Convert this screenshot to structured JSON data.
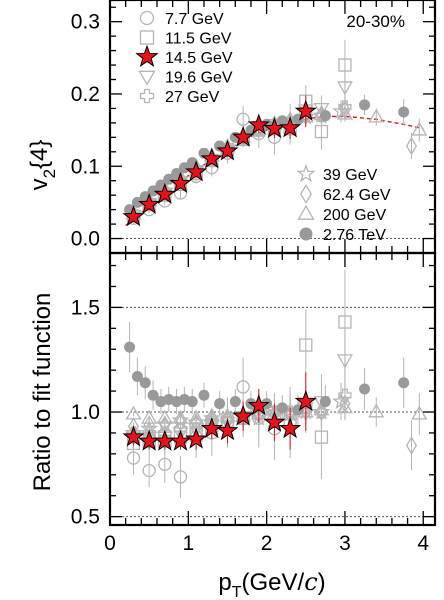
{
  "chart_data": [
    {
      "type": "scatter",
      "panel": "top",
      "ylabel_main": "v",
      "ylabel_sub": "2",
      "ylabel_rest": "{4}",
      "centrality": "20-30%",
      "xlim": [
        0,
        4.15
      ],
      "ylim": [
        -0.02,
        0.33
      ],
      "x_ticks": [
        "0",
        "1",
        "2",
        "3",
        "4"
      ],
      "y_ticks": [
        {
          "value": 0.0,
          "label": "0.0"
        },
        {
          "value": 0.1,
          "label": "0.1"
        },
        {
          "value": 0.2,
          "label": "0.2"
        },
        {
          "value": 0.3,
          "label": "0.3"
        }
      ],
      "reference_line": 0.0,
      "fit_function": {
        "x": [
          0.2,
          0.4,
          0.6,
          0.8,
          1.0,
          1.2,
          1.4,
          1.6,
          1.8,
          2.0,
          2.2,
          2.4,
          2.6,
          2.8,
          3.0,
          3.2,
          3.4,
          3.6,
          3.8,
          4.0
        ],
        "y": [
          0.018,
          0.036,
          0.054,
          0.07,
          0.087,
          0.102,
          0.116,
          0.129,
          0.141,
          0.15,
          0.158,
          0.163,
          0.167,
          0.169,
          0.169,
          0.167,
          0.165,
          0.161,
          0.157,
          0.152
        ]
      },
      "legend_left": [
        "7.7 GeV",
        "11.5 GeV",
        "14.5 GeV",
        "19.6 GeV",
        "27 GeV"
      ],
      "legend_right": [
        "39 GeV",
        "62.4 GeV",
        "200 GeV",
        "2.76 TeV"
      ],
      "series": [
        {
          "name": "7.7 GeV",
          "marker": "circle-open",
          "x": [
            0.3,
            0.5,
            0.7,
            0.9,
            1.1,
            1.3,
            1.5,
            1.7,
            1.9,
            2.1,
            2.3
          ],
          "y": [
            0.028,
            0.04,
            0.052,
            0.063,
            0.086,
            0.098,
            0.118,
            0.165,
            0.145,
            0.14,
            0.158
          ],
          "err": [
            0.004,
            0.005,
            0.006,
            0.008,
            0.01,
            0.012,
            0.014,
            0.018,
            0.02,
            0.024,
            0.028
          ]
        },
        {
          "name": "11.5 GeV",
          "marker": "square-open",
          "x": [
            0.3,
            0.5,
            0.7,
            0.9,
            1.1,
            1.3,
            1.5,
            1.7,
            1.9,
            2.1,
            2.3,
            2.5,
            2.7,
            3.0
          ],
          "y": [
            0.031,
            0.047,
            0.06,
            0.075,
            0.09,
            0.108,
            0.123,
            0.137,
            0.15,
            0.152,
            0.152,
            0.19,
            0.148,
            0.24
          ],
          "err": [
            0.003,
            0.003,
            0.004,
            0.005,
            0.006,
            0.007,
            0.008,
            0.01,
            0.012,
            0.014,
            0.016,
            0.022,
            0.025,
            0.035
          ]
        },
        {
          "name": "14.5 GeV",
          "marker": "star-filled",
          "x": [
            0.3,
            0.5,
            0.7,
            0.9,
            1.1,
            1.3,
            1.5,
            1.7,
            1.9,
            2.1,
            2.3,
            2.5
          ],
          "y": [
            0.03,
            0.047,
            0.061,
            0.076,
            0.092,
            0.11,
            0.121,
            0.14,
            0.157,
            0.152,
            0.153,
            0.176
          ],
          "err": [
            0.003,
            0.003,
            0.004,
            0.005,
            0.006,
            0.007,
            0.008,
            0.009,
            0.011,
            0.013,
            0.015,
            0.022
          ]
        },
        {
          "name": "19.6 GeV",
          "marker": "triangle-down-open",
          "x": [
            0.3,
            0.5,
            0.7,
            0.9,
            1.1,
            1.3,
            1.5,
            1.7,
            1.9,
            2.1,
            2.3,
            2.5,
            2.7,
            3.0
          ],
          "y": [
            0.032,
            0.048,
            0.062,
            0.078,
            0.094,
            0.108,
            0.122,
            0.138,
            0.15,
            0.158,
            0.155,
            0.178,
            0.18,
            0.21
          ],
          "err": [
            0.002,
            0.002,
            0.003,
            0.004,
            0.004,
            0.005,
            0.006,
            0.007,
            0.009,
            0.01,
            0.012,
            0.016,
            0.018,
            0.025
          ]
        },
        {
          "name": "27 GeV",
          "marker": "cross-open",
          "x": [
            0.3,
            0.5,
            0.7,
            0.9,
            1.1,
            1.3,
            1.5,
            1.7,
            1.9,
            2.1,
            2.3,
            2.5,
            2.7,
            3.0
          ],
          "y": [
            0.033,
            0.049,
            0.064,
            0.08,
            0.095,
            0.11,
            0.123,
            0.139,
            0.151,
            0.156,
            0.16,
            0.172,
            0.17,
            0.182
          ],
          "err": [
            0.002,
            0.002,
            0.003,
            0.003,
            0.004,
            0.004,
            0.005,
            0.006,
            0.007,
            0.008,
            0.01,
            0.012,
            0.014,
            0.018
          ]
        },
        {
          "name": "39 GeV",
          "marker": "star-open",
          "x": [
            0.3,
            0.5,
            0.7,
            0.9,
            1.1,
            1.3,
            1.5,
            1.7,
            1.9,
            2.1,
            2.3,
            2.5,
            2.7,
            2.95
          ],
          "y": [
            0.032,
            0.05,
            0.066,
            0.082,
            0.096,
            0.112,
            0.126,
            0.141,
            0.15,
            0.158,
            0.162,
            0.168,
            0.17,
            0.176
          ],
          "err": [
            0.002,
            0.002,
            0.002,
            0.003,
            0.003,
            0.004,
            0.004,
            0.005,
            0.006,
            0.007,
            0.008,
            0.01,
            0.012,
            0.015
          ]
        },
        {
          "name": "62.4 GeV",
          "marker": "diamond-open",
          "x": [
            0.3,
            0.5,
            0.7,
            0.9,
            1.1,
            1.3,
            1.5,
            1.7,
            1.9,
            2.1,
            2.3,
            2.5,
            2.7,
            3.0,
            3.85
          ],
          "y": [
            0.033,
            0.052,
            0.068,
            0.084,
            0.098,
            0.112,
            0.125,
            0.139,
            0.152,
            0.158,
            0.163,
            0.17,
            0.172,
            0.178,
            0.128
          ],
          "err": [
            0.002,
            0.002,
            0.002,
            0.003,
            0.003,
            0.003,
            0.004,
            0.004,
            0.005,
            0.006,
            0.007,
            0.008,
            0.01,
            0.012,
            0.018
          ]
        },
        {
          "name": "200 GeV",
          "marker": "triangle-up-open",
          "x": [
            0.3,
            0.5,
            0.7,
            0.9,
            1.1,
            1.3,
            1.5,
            1.7,
            1.9,
            2.1,
            2.3,
            2.5,
            2.7,
            3.0,
            3.4,
            3.95
          ],
          "y": [
            0.034,
            0.052,
            0.068,
            0.084,
            0.099,
            0.114,
            0.127,
            0.14,
            0.151,
            0.158,
            0.163,
            0.168,
            0.171,
            0.172,
            0.168,
            0.15
          ],
          "err": [
            0.001,
            0.001,
            0.002,
            0.002,
            0.002,
            0.003,
            0.003,
            0.004,
            0.004,
            0.005,
            0.006,
            0.007,
            0.008,
            0.01,
            0.012,
            0.016
          ]
        },
        {
          "name": "2.76 TeV",
          "marker": "circle-filled",
          "x": [
            0.25,
            0.35,
            0.45,
            0.55,
            0.65,
            0.75,
            0.85,
            0.95,
            1.05,
            1.2,
            1.4,
            1.6,
            1.8,
            2.0,
            2.2,
            2.4,
            2.75,
            3.25,
            3.75
          ],
          "y": [
            0.04,
            0.05,
            0.058,
            0.066,
            0.074,
            0.082,
            0.09,
            0.098,
            0.105,
            0.118,
            0.128,
            0.14,
            0.15,
            0.158,
            0.163,
            0.165,
            0.17,
            0.185,
            0.175
          ],
          "err": [
            0.003,
            0.003,
            0.003,
            0.003,
            0.003,
            0.003,
            0.003,
            0.003,
            0.004,
            0.004,
            0.004,
            0.005,
            0.005,
            0.006,
            0.007,
            0.008,
            0.01,
            0.014,
            0.018
          ]
        }
      ]
    },
    {
      "type": "scatter",
      "panel": "bottom",
      "ylabel": "Ratio to fit function",
      "xlabel_main": "p",
      "xlabel_sub": "T",
      "xlabel_rest": "(GeV/",
      "xlabel_italic": "c",
      "xlabel_close": ")",
      "xlim": [
        0,
        4.15
      ],
      "ylim": [
        0.46,
        1.76
      ],
      "x_ticks": [
        "0",
        "1",
        "2",
        "3",
        "4"
      ],
      "y_ticks": [
        {
          "value": 0.5,
          "label": "0.5"
        },
        {
          "value": 1.0,
          "label": "1.0"
        },
        {
          "value": 1.5,
          "label": "1.5"
        }
      ],
      "reference_lines": [
        0.5,
        1.0,
        1.5
      ],
      "series": [
        {
          "name": "7.7 GeV",
          "marker": "circle-open",
          "x": [
            0.3,
            0.5,
            0.7,
            0.9,
            1.1,
            1.3,
            1.5,
            1.7,
            1.9,
            2.1,
            2.3
          ],
          "y": [
            0.78,
            0.72,
            0.75,
            0.69,
            0.88,
            0.9,
            0.95,
            1.12,
            0.97,
            0.92,
            0.95
          ],
          "err": [
            0.08,
            0.08,
            0.09,
            0.1,
            0.1,
            0.11,
            0.12,
            0.14,
            0.14,
            0.15,
            0.17
          ]
        },
        {
          "name": "11.5 GeV",
          "marker": "square-open",
          "x": [
            0.3,
            0.5,
            0.7,
            0.9,
            1.1,
            1.3,
            1.5,
            1.7,
            1.9,
            2.1,
            2.3,
            2.5,
            2.7,
            3.0
          ],
          "y": [
            0.85,
            0.86,
            0.86,
            0.88,
            0.89,
            0.94,
            0.95,
            0.97,
            1.0,
            0.98,
            0.96,
            1.32,
            0.88,
            1.43
          ],
          "err": [
            0.07,
            0.06,
            0.06,
            0.06,
            0.07,
            0.07,
            0.08,
            0.09,
            0.1,
            0.11,
            0.12,
            0.17,
            0.2,
            0.25
          ]
        },
        {
          "name": "14.5 GeV",
          "marker": "star-filled",
          "x": [
            0.3,
            0.5,
            0.7,
            0.9,
            1.1,
            1.3,
            1.5,
            1.7,
            1.9,
            2.1,
            2.3,
            2.5
          ],
          "y": [
            0.88,
            0.86,
            0.86,
            0.86,
            0.87,
            0.92,
            0.91,
            0.98,
            1.03,
            0.95,
            0.92,
            1.05
          ],
          "err": [
            0.04,
            0.04,
            0.04,
            0.04,
            0.05,
            0.05,
            0.06,
            0.07,
            0.08,
            0.09,
            0.1,
            0.14
          ]
        },
        {
          "name": "19.6 GeV",
          "marker": "triangle-down-open",
          "x": [
            0.3,
            0.5,
            0.7,
            0.9,
            1.1,
            1.3,
            1.5,
            1.7,
            1.9,
            2.1,
            2.3,
            2.5,
            2.7,
            3.0
          ],
          "y": [
            0.88,
            0.88,
            0.88,
            0.9,
            0.92,
            0.94,
            0.95,
            0.97,
            0.99,
            1.0,
            0.98,
            1.02,
            1.05,
            1.25
          ],
          "err": [
            0.04,
            0.04,
            0.04,
            0.04,
            0.05,
            0.05,
            0.06,
            0.07,
            0.08,
            0.08,
            0.1,
            0.12,
            0.13,
            0.16
          ]
        },
        {
          "name": "27 GeV",
          "marker": "cross-open",
          "x": [
            0.3,
            0.5,
            0.7,
            0.9,
            1.1,
            1.3,
            1.5,
            1.7,
            1.9,
            2.1,
            2.3,
            2.5,
            2.7,
            3.0
          ],
          "y": [
            0.9,
            0.9,
            0.9,
            0.92,
            0.92,
            0.95,
            0.96,
            0.97,
            0.99,
            1.0,
            1.0,
            1.02,
            1.0,
            1.08
          ],
          "err": [
            0.03,
            0.03,
            0.03,
            0.03,
            0.04,
            0.04,
            0.04,
            0.05,
            0.05,
            0.06,
            0.07,
            0.08,
            0.09,
            0.12
          ]
        },
        {
          "name": "39 GeV",
          "marker": "star-open",
          "x": [
            0.3,
            0.5,
            0.7,
            0.9,
            1.1,
            1.3,
            1.5,
            1.7,
            1.9,
            2.1,
            2.3,
            2.5,
            2.7,
            2.95
          ],
          "y": [
            0.9,
            0.92,
            0.94,
            0.96,
            0.95,
            0.97,
            0.98,
            0.99,
            0.97,
            0.98,
            0.99,
            1.0,
            1.0,
            1.05
          ],
          "err": [
            0.03,
            0.03,
            0.03,
            0.03,
            0.03,
            0.03,
            0.04,
            0.04,
            0.04,
            0.05,
            0.05,
            0.06,
            0.07,
            0.09
          ]
        },
        {
          "name": "62.4 GeV",
          "marker": "diamond-open",
          "x": [
            0.3,
            0.5,
            0.7,
            0.9,
            1.1,
            1.3,
            1.5,
            1.7,
            1.9,
            2.1,
            2.3,
            2.5,
            2.7,
            3.0,
            3.85
          ],
          "y": [
            0.93,
            0.94,
            0.94,
            0.95,
            0.95,
            0.96,
            0.96,
            0.97,
            0.99,
            0.99,
            0.99,
            1.0,
            1.0,
            1.04,
            0.84
          ],
          "err": [
            0.02,
            0.02,
            0.02,
            0.02,
            0.02,
            0.03,
            0.03,
            0.03,
            0.04,
            0.04,
            0.05,
            0.05,
            0.06,
            0.07,
            0.12
          ]
        },
        {
          "name": "200 GeV",
          "marker": "triangle-up-open",
          "x": [
            0.3,
            0.5,
            0.7,
            0.9,
            1.1,
            1.3,
            1.5,
            1.7,
            1.9,
            2.1,
            2.3,
            2.5,
            2.7,
            3.0,
            3.4,
            3.95
          ],
          "y": [
            0.99,
            0.97,
            0.97,
            0.97,
            0.97,
            0.98,
            0.98,
            0.98,
            0.99,
            0.99,
            0.99,
            1.0,
            1.01,
            1.02,
            1.0,
            0.99
          ],
          "err": [
            0.01,
            0.01,
            0.01,
            0.01,
            0.02,
            0.02,
            0.02,
            0.02,
            0.03,
            0.03,
            0.03,
            0.04,
            0.04,
            0.05,
            0.07,
            0.1
          ]
        },
        {
          "name": "2.76 TeV",
          "marker": "circle-filled",
          "x": [
            0.25,
            0.35,
            0.45,
            0.55,
            0.65,
            0.75,
            0.85,
            0.95,
            1.05,
            1.2,
            1.4,
            1.6,
            1.8,
            2.0,
            2.2,
            2.4,
            2.75,
            3.25,
            3.75
          ],
          "y": [
            1.31,
            1.17,
            1.14,
            1.08,
            1.05,
            1.06,
            1.05,
            1.06,
            1.05,
            1.08,
            1.04,
            1.05,
            1.04,
            1.04,
            1.02,
            1.01,
            1.05,
            1.11,
            1.14
          ],
          "err": [
            0.12,
            0.09,
            0.08,
            0.07,
            0.06,
            0.06,
            0.06,
            0.06,
            0.06,
            0.06,
            0.06,
            0.06,
            0.06,
            0.06,
            0.06,
            0.07,
            0.08,
            0.1,
            0.12
          ]
        }
      ]
    }
  ],
  "style": {
    "open_marker_color": "#b5b5b5",
    "filled_marker_color": "#999999",
    "star_fill": "#e8101a",
    "fit_line_color": "#e01818"
  }
}
